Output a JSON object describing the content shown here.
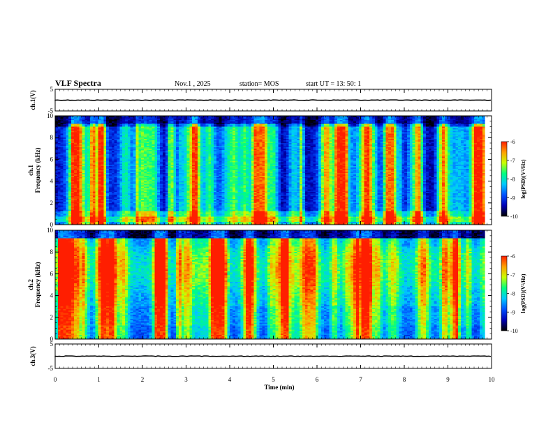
{
  "header": {
    "title": "VLF Spectra",
    "date": "Nov.1 , 2025",
    "station": "station= MOS",
    "start_ut": "start UT = 13: 50: 1"
  },
  "colors": {
    "cmap": [
      "#000000",
      "#0000b4",
      "#0050ff",
      "#00c8ff",
      "#00ff80",
      "#c8ff00",
      "#ffa000",
      "#ff1e00"
    ],
    "line": "#000000"
  },
  "chart_data": [
    {
      "type": "line",
      "name": "ch.1 waveform",
      "ylabel": "ch.1(V)",
      "yticks": [
        "5",
        "-5"
      ],
      "ylim": [
        -5,
        5
      ],
      "xlim": [
        0,
        10
      ],
      "level": 0
    },
    {
      "type": "heatmap",
      "name": "ch.1 spectrogram",
      "ylabel": "ch.1\nFrequency (kHz)",
      "yticks": [
        "0",
        "2",
        "4",
        "6",
        "8",
        "10"
      ],
      "ylim": [
        0,
        10
      ],
      "xlim": [
        0,
        9.85
      ],
      "colorbar": {
        "label": "log(PSD)(V²/Hz)",
        "ticks": [
          "-6",
          "-7",
          "-8",
          "-9",
          "-10"
        ],
        "range": [
          -10,
          -6
        ]
      }
    },
    {
      "type": "heatmap",
      "name": "ch.2 spectrogram",
      "ylabel": "ch.2\nFrequency (kHz)",
      "yticks": [
        "0",
        "2",
        "4",
        "6",
        "8",
        "10"
      ],
      "ylim": [
        0,
        10
      ],
      "xlim": [
        0,
        9.85
      ],
      "colorbar": {
        "label": "log(PSD)(V²/Hz)",
        "ticks": [
          "-6",
          "-7",
          "-8",
          "-9",
          "-10"
        ],
        "range": [
          -10,
          -6
        ]
      }
    },
    {
      "type": "line",
      "name": "ch.3 waveform",
      "ylabel": "ch.3(V)",
      "yticks": [
        "5",
        "-5"
      ],
      "ylim": [
        -5,
        5
      ],
      "xlim": [
        0,
        10
      ],
      "level": 0
    }
  ],
  "x_axis": {
    "label": "Time (min)",
    "ticks": [
      "0",
      "1",
      "2",
      "3",
      "4",
      "5",
      "6",
      "7",
      "8",
      "9",
      "10"
    ],
    "range": [
      0,
      10
    ]
  }
}
